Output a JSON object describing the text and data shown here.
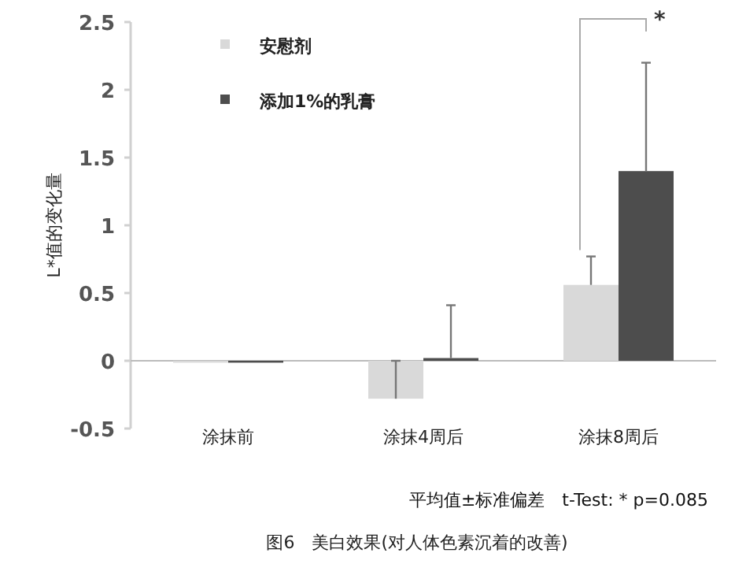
{
  "chart_data": {
    "type": "bar",
    "categories": [
      "涂抹前",
      "涂抹4周后",
      "涂抹8周后"
    ],
    "ylabel": "L*值的变化量",
    "ylim": [
      -0.5,
      2.5
    ],
    "yticks": [
      -0.5,
      0,
      0.5,
      1,
      1.5,
      2,
      2.5
    ],
    "legend": "top left",
    "series": [
      {
        "name": "安慰剂",
        "color": "#d9d9d9",
        "values": [
          0,
          -0.28,
          0.56
        ],
        "errors": [
          null,
          [
            -0.28,
            0
          ],
          [
            0.56,
            0.77
          ]
        ]
      },
      {
        "name": "添加1%的乳膏",
        "color": "#4d4d4d",
        "values": [
          0,
          0.02,
          1.4
        ],
        "errors": [
          null,
          [
            0.02,
            0.41
          ],
          [
            1.4,
            2.2
          ]
        ]
      }
    ],
    "annotations": [
      "*",
      "平均值±标准偏差　t-Test: * p=0.085",
      "图6　美白效果(对人体色素沉着的改善)"
    ]
  }
}
